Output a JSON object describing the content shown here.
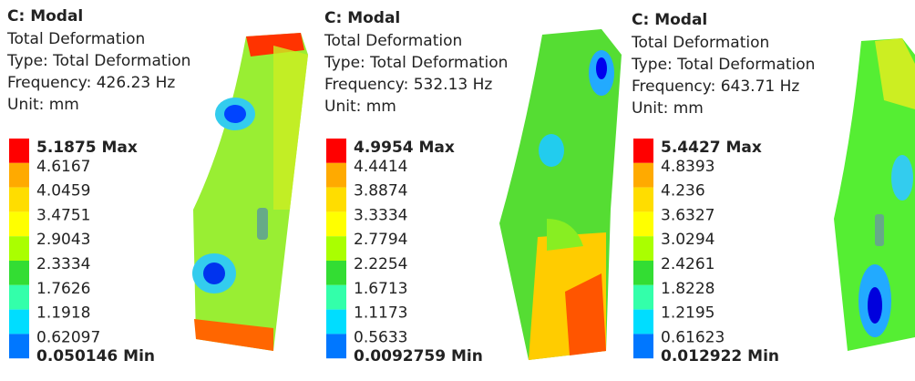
{
  "legend_colors": [
    "#ff0000",
    "#ffaa00",
    "#ffdd00",
    "#ffff00",
    "#aaff00",
    "#33dd33",
    "#33ffaa",
    "#00ddff",
    "#0077ff",
    "#0000ff"
  ],
  "panels": [
    {
      "title": "C: Modal",
      "subtitle": "Total Deformation",
      "type": "Type: Total Deformation",
      "frequency": "Frequency: 426.23 Hz",
      "unit": "Unit: mm",
      "legend": [
        "5.1875 Max",
        "4.6167",
        "4.0459",
        "3.4751",
        "2.9043",
        "2.3334",
        "1.7626",
        "1.1918",
        "0.62097",
        "0.050146 Min"
      ]
    },
    {
      "title": "C: Modal",
      "subtitle": "Total Deformation",
      "type": "Type: Total Deformation",
      "frequency": "Frequency: 532.13 Hz",
      "unit": "Unit: mm",
      "legend": [
        "4.9954 Max",
        "4.4414",
        "3.8874",
        "3.3334",
        "2.7794",
        "2.2254",
        "1.6713",
        "1.1173",
        "0.5633",
        "0.0092759 Min"
      ]
    },
    {
      "title": "C: Modal",
      "subtitle": "Total Deformation",
      "type": "Type: Total Deformation",
      "frequency": "Frequency: 643.71 Hz",
      "unit": "Unit: mm",
      "legend": [
        "5.4427 Max",
        "4.8393",
        "4.236",
        "3.6327",
        "3.0294",
        "2.4261",
        "1.8228",
        "1.2195",
        "0.61623",
        "0.012922 Min"
      ]
    }
  ]
}
